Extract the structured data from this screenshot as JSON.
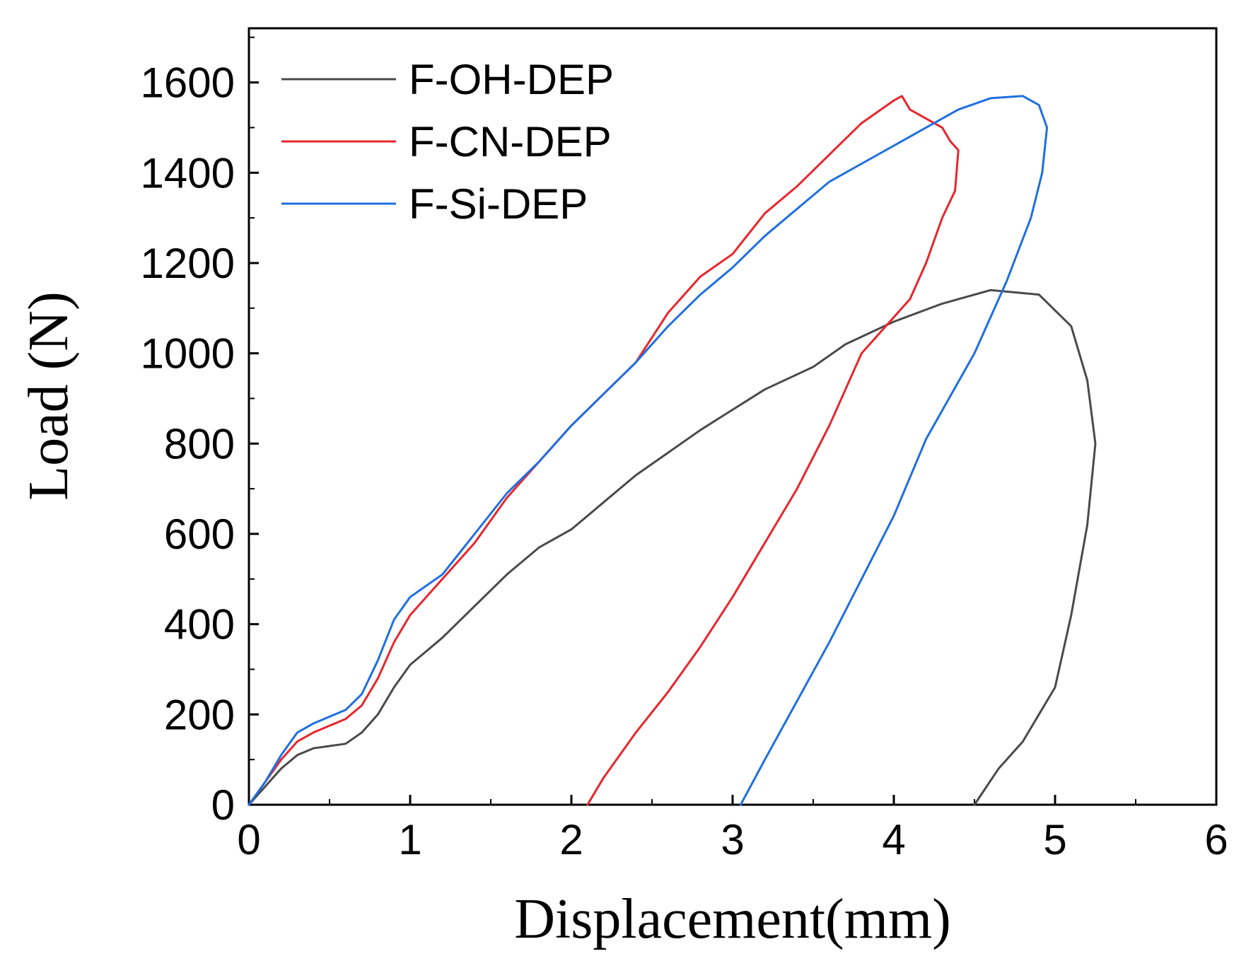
{
  "chart_data": {
    "type": "line",
    "title": "",
    "xlabel": "Displacement(mm)",
    "ylabel": "Load (N)",
    "xlim": [
      0,
      6
    ],
    "ylim": [
      0,
      1720
    ],
    "xticks": [
      0,
      1,
      2,
      3,
      4,
      5,
      6
    ],
    "yticks": [
      0,
      200,
      400,
      600,
      800,
      1000,
      1200,
      1400,
      1600
    ],
    "grid": false,
    "legend_position": "top-left",
    "series": [
      {
        "name": "F-OH-DEP",
        "color": "#4a4a4a",
        "x": [
          0.0,
          0.1,
          0.2,
          0.3,
          0.4,
          0.5,
          0.6,
          0.7,
          0.8,
          0.9,
          1.0,
          1.2,
          1.4,
          1.6,
          1.8,
          2.0,
          2.2,
          2.4,
          2.6,
          2.8,
          3.0,
          3.2,
          3.5,
          3.7,
          4.0,
          4.3,
          4.6,
          4.9,
          5.1,
          5.2,
          5.25,
          5.2,
          5.1,
          5.0,
          4.9,
          4.8,
          4.65,
          4.5
        ],
        "y": [
          0,
          40,
          80,
          110,
          125,
          130,
          135,
          160,
          200,
          260,
          310,
          370,
          440,
          510,
          570,
          610,
          670,
          730,
          780,
          830,
          875,
          920,
          970,
          1020,
          1070,
          1110,
          1140,
          1130,
          1060,
          940,
          800,
          620,
          420,
          260,
          200,
          140,
          80,
          0
        ]
      },
      {
        "name": "F-CN-DEP",
        "color": "#e8262d",
        "x": [
          0.0,
          0.1,
          0.2,
          0.3,
          0.4,
          0.5,
          0.6,
          0.7,
          0.8,
          0.9,
          1.0,
          1.2,
          1.4,
          1.6,
          1.8,
          2.0,
          2.2,
          2.4,
          2.6,
          2.8,
          3.0,
          3.2,
          3.4,
          3.6,
          3.8,
          4.0,
          4.05,
          4.1,
          4.2,
          4.3,
          4.35,
          4.4,
          4.38,
          4.3,
          4.2,
          4.1,
          4.0,
          3.8,
          3.6,
          3.4,
          3.2,
          3.0,
          2.8,
          2.6,
          2.4,
          2.2,
          2.1
        ],
        "y": [
          0,
          50,
          100,
          140,
          160,
          175,
          190,
          220,
          280,
          360,
          420,
          500,
          580,
          680,
          760,
          840,
          910,
          980,
          1090,
          1170,
          1220,
          1310,
          1370,
          1440,
          1510,
          1560,
          1570,
          1540,
          1520,
          1500,
          1470,
          1450,
          1360,
          1300,
          1200,
          1120,
          1080,
          1000,
          840,
          700,
          580,
          460,
          350,
          250,
          160,
          60,
          0
        ]
      },
      {
        "name": "F-Si-DEP",
        "color": "#1f6fe0",
        "x": [
          0.0,
          0.1,
          0.2,
          0.3,
          0.4,
          0.5,
          0.6,
          0.7,
          0.8,
          0.9,
          1.0,
          1.2,
          1.4,
          1.6,
          1.8,
          2.0,
          2.2,
          2.4,
          2.6,
          2.8,
          3.0,
          3.2,
          3.4,
          3.6,
          3.8,
          4.0,
          4.2,
          4.4,
          4.6,
          4.8,
          4.9,
          4.95,
          4.92,
          4.85,
          4.7,
          4.5,
          4.2,
          4.0,
          3.8,
          3.6,
          3.4,
          3.2,
          3.05
        ],
        "y": [
          0,
          50,
          110,
          160,
          180,
          195,
          210,
          245,
          320,
          410,
          460,
          510,
          600,
          690,
          760,
          840,
          910,
          980,
          1060,
          1130,
          1190,
          1260,
          1320,
          1380,
          1420,
          1460,
          1500,
          1540,
          1565,
          1570,
          1550,
          1500,
          1400,
          1300,
          1160,
          1000,
          810,
          640,
          500,
          360,
          230,
          100,
          0
        ]
      }
    ]
  }
}
